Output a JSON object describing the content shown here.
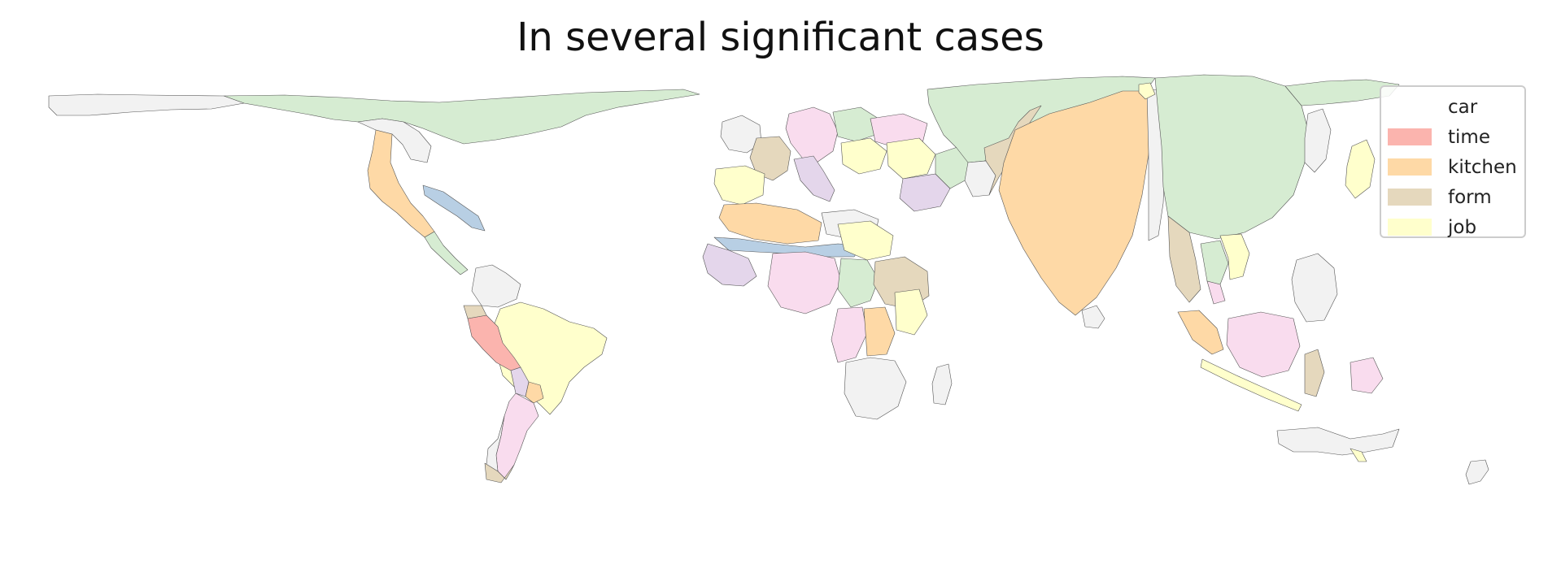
{
  "title": "In several significant cases",
  "legend": {
    "items": [
      {
        "label": "car",
        "color": "#ffffff"
      },
      {
        "label": "time",
        "color": "#fbb4ae"
      },
      {
        "label": "kitchen",
        "color": "#fed9a6"
      },
      {
        "label": "form",
        "color": "#e5d8bd"
      },
      {
        "label": "job",
        "color": "#ffffcc"
      }
    ]
  },
  "palette": {
    "green": "#d6ecd2",
    "pink": "#f9dcee",
    "purple": "#e4d6eb",
    "blue": "#b8cfe4",
    "grey": "#f2f2f2",
    "border": "#555555"
  }
}
